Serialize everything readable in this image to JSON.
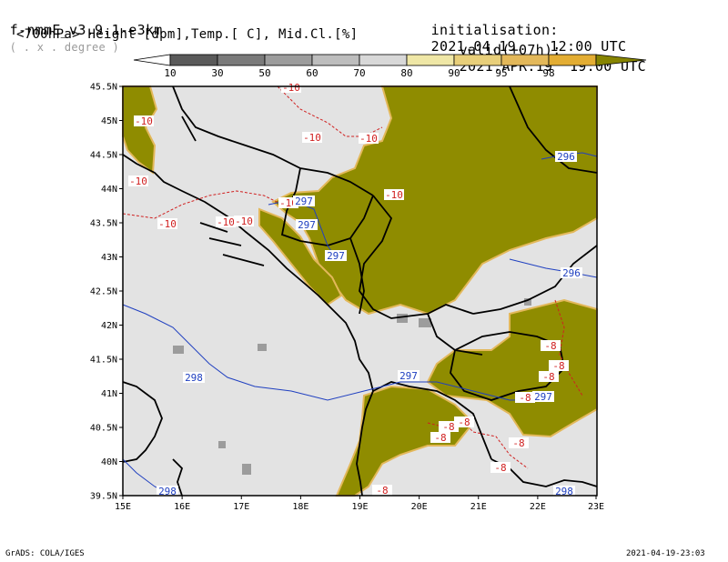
{
  "header": {
    "model_prefix": "f-nmmE_v3.9.1-e3km",
    "units_note": "( . x . degree )",
    "fields_label": "<700hPa> Height [dpm],Temp.[ C], Mid.Cl.[%]",
    "init_label": "initialisation:",
    "init_value": "2021.04.19.   12:00 UTC",
    "valid_label": "valid(+07h):",
    "valid_value": "2021.APR.19  19:00 UTC"
  },
  "colorbar": {
    "ticks": [
      "10",
      "30",
      "50",
      "60",
      "70",
      "80",
      "90",
      "95",
      "98"
    ],
    "colors": [
      "#5a5a5a",
      "#7a7a7a",
      "#9c9c9c",
      "#bdbdbd",
      "#d8d8d8",
      "#efe7a6",
      "#e8cf7a",
      "#e3b85a",
      "#e3ad33",
      "#868400"
    ]
  },
  "axes": {
    "lat_labels": [
      "45.5N",
      "45N",
      "44.5N",
      "44N",
      "43.5N",
      "43N",
      "42.5N",
      "42N",
      "41.5N",
      "41N",
      "40.5N",
      "40N",
      "39.5N"
    ],
    "lon_labels": [
      "15E",
      "16E",
      "17E",
      "18E",
      "19E",
      "20E",
      "21E",
      "22E",
      "23E"
    ]
  },
  "map": {
    "background_color": "#e3e3e3",
    "cloud_color": "#8f8c00",
    "coast_color": "#000000",
    "temp_contour_color": "#d02020",
    "height_contour_color": "#2040c0",
    "temp_labels": [
      "-10",
      "-10",
      "-10",
      "-10",
      "-10",
      "-10",
      "-10",
      "-10",
      "-10",
      "-10",
      "-8",
      "-8",
      "-8",
      "-8",
      "-8",
      "-8",
      "-8",
      "-8",
      "-8",
      "-8"
    ],
    "height_labels": [
      "297",
      "297",
      "297",
      "296",
      "296",
      "297",
      "297",
      "298",
      "298",
      "298"
    ]
  },
  "footer": {
    "left": "GrADS: COLA/IGES",
    "right": "2021-04-19-23:03"
  }
}
